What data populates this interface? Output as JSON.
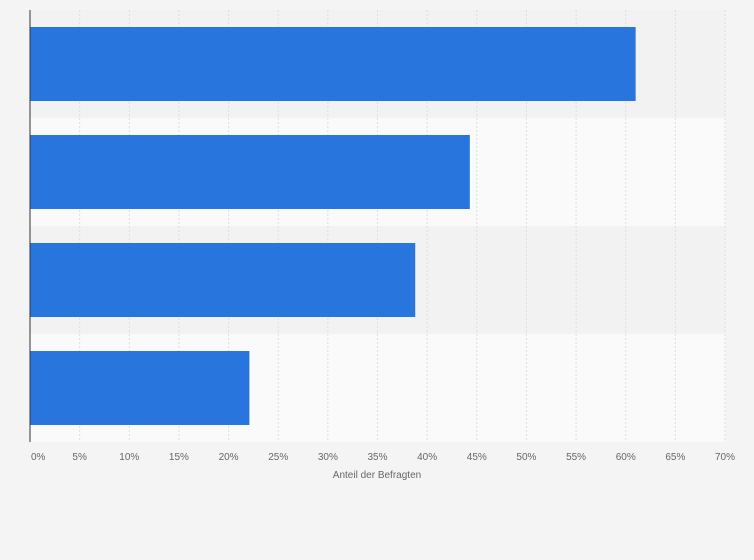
{
  "chart_data": {
    "type": "bar",
    "orientation": "horizontal",
    "categories": [
      "",
      "",
      "",
      ""
    ],
    "values": [
      61,
      44.3,
      38.8,
      22.1
    ],
    "value_unit": "%",
    "title": "",
    "xlabel": "Anteil der Befragten",
    "ylabel": "",
    "xlim": [
      0,
      70
    ],
    "x_ticks": [
      "0%",
      "5%",
      "10%",
      "15%",
      "20%",
      "25%",
      "30%",
      "35%",
      "40%",
      "45%",
      "50%",
      "55%",
      "60%",
      "65%",
      "70%"
    ],
    "grid": true,
    "legend": "none",
    "bar_color": "#2876dd",
    "band_colors": [
      "#f2f2f2",
      "#fafafa"
    ]
  }
}
